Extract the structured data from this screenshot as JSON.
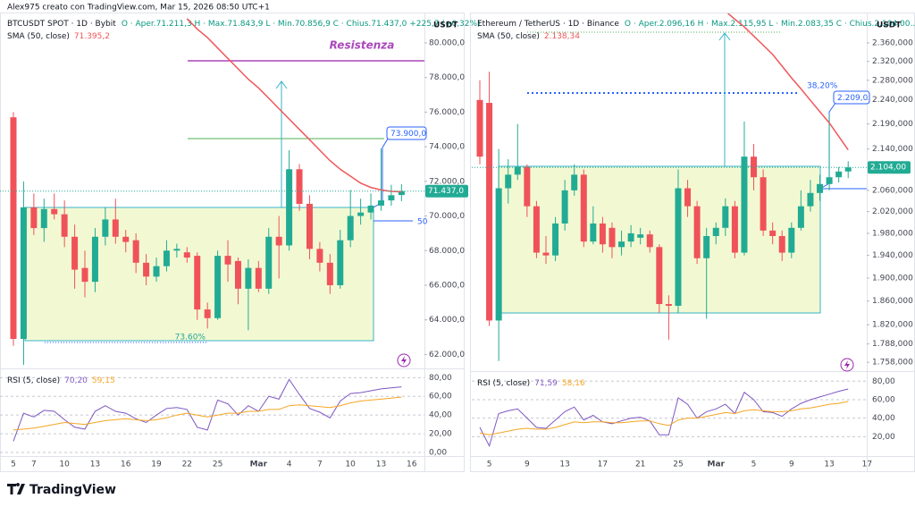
{
  "watermark": "Alex975 creato con TradingView.com, Mar 15, 2026 08:50 UTC+1",
  "logo": "TradingView",
  "chart_data": [
    {
      "type": "candlestick",
      "title": "BTCUSDT SPOT · 1D · Bybit",
      "ohlc_text": "O · Aper.71.211,3  H · Max.71.843,9  L · Min.70.856,9  C · Chius.71.437,0  +225,7 (+0,32%)",
      "currency": "USDT",
      "categories": [
        "5",
        null,
        "7",
        null,
        null,
        "10",
        null,
        null,
        "13",
        null,
        null,
        "16",
        null,
        null,
        "19",
        null,
        null,
        "22",
        null,
        null,
        "25",
        null,
        null,
        null,
        "Mar",
        null,
        null,
        "4",
        null,
        null,
        "7",
        null,
        null,
        "10",
        null,
        null,
        "13",
        null,
        null,
        "16"
      ],
      "open": [
        75700,
        62900,
        70500,
        69300,
        70400,
        70100,
        68800,
        67000,
        66200,
        68800,
        69800,
        68800,
        68600,
        67300,
        66500,
        67100,
        68000,
        67900,
        67700,
        64600,
        64100,
        67700,
        67400,
        65800,
        67000,
        65800,
        68800,
        68300,
        72700,
        70700,
        68100,
        67300,
        66000,
        68600,
        70000,
        70200,
        70600,
        70900,
        71211.3,
        null
      ],
      "high": [
        76000,
        72000,
        71300,
        71000,
        71300,
        70900,
        69500,
        68000,
        69300,
        70500,
        71000,
        69200,
        69000,
        67800,
        67600,
        68600,
        68400,
        68200,
        67900,
        65000,
        68000,
        68600,
        67600,
        67500,
        67400,
        69300,
        70000,
        73800,
        73000,
        71200,
        68500,
        67800,
        69200,
        71500,
        71000,
        71300,
        73900,
        71800,
        71843.9,
        null
      ],
      "low": [
        62500,
        61400,
        68900,
        68500,
        69800,
        68200,
        65800,
        65300,
        65600,
        68300,
        68400,
        67900,
        66700,
        66000,
        66200,
        66800,
        67600,
        67300,
        64000,
        63500,
        64000,
        66200,
        64900,
        63400,
        65600,
        65500,
        66400,
        68000,
        70300,
        67500,
        66800,
        65500,
        65800,
        68200,
        69500,
        69800,
        70300,
        70600,
        70856.9,
        null
      ],
      "close": [
        62900,
        70500,
        69300,
        70400,
        70100,
        68800,
        66900,
        66200,
        68800,
        69800,
        68800,
        68500,
        67300,
        66500,
        67100,
        68000,
        68100,
        67600,
        64600,
        64100,
        67700,
        67200,
        65800,
        67000,
        65800,
        68800,
        68300,
        72700,
        70700,
        68100,
        67300,
        66000,
        68600,
        70000,
        70200,
        70600,
        70900,
        71200,
        71437,
        null
      ],
      "up_color": "#22ab94",
      "down_color": "#f0525a",
      "sma": {
        "title": "SMA (50, close)",
        "value_label": "71.395,2",
        "color": "#f0575b",
        "values": [
          null,
          null,
          null,
          null,
          null,
          null,
          null,
          null,
          null,
          null,
          null,
          null,
          null,
          null,
          null,
          null,
          null,
          81400,
          80800,
          80300,
          79700,
          79100,
          78500,
          77900,
          77400,
          76800,
          76200,
          75600,
          75000,
          74400,
          73800,
          73200,
          72700,
          72300,
          71900,
          71650,
          71500,
          71420,
          71395.2,
          null
        ]
      },
      "log": false,
      "ylim": [
        61300,
        81700
      ],
      "yticks": [
        {
          "value": 80000,
          "label": "80.000,0"
        },
        {
          "value": 78000,
          "label": "78.000,0"
        },
        {
          "value": 76000,
          "label": "76.000,0"
        },
        {
          "value": 74000,
          "label": "74.000,0"
        },
        {
          "value": 72000,
          "label": "72.000,0"
        },
        {
          "value": 70000,
          "label": "70.000,0"
        },
        {
          "value": 68000,
          "label": "68.000,0"
        },
        {
          "value": 66000,
          "label": "66.000,0"
        },
        {
          "value": 64000,
          "label": "64.000,0"
        },
        {
          "value": 62000,
          "label": "62.000,0"
        }
      ],
      "last_price_label": "71.437,0",
      "annotations": {
        "resistance": "Resistenza",
        "target": "73.900,0",
        "fib": "73.60%",
        "level": "50"
      },
      "rsi": {
        "title": "RSI (5, close)",
        "ylim": [
          0,
          87
        ],
        "grid": true,
        "yticks": [
          {
            "value": 80,
            "label": "80,00"
          },
          {
            "value": 60,
            "label": "60,00"
          },
          {
            "value": 40,
            "label": "40,00"
          },
          {
            "value": 20,
            "label": "20,00"
          },
          {
            "value": 0,
            "label": "0,00"
          }
        ],
        "series": [
          {
            "color": "#7e57c2",
            "value_label": "70,20",
            "values": [
              12,
              42,
              38,
              45,
              44,
              35,
              27,
              25,
              44,
              50,
              44,
              42,
              36,
              32,
              40,
              47,
              48,
              46,
              27,
              24,
              56,
              52,
              40,
              50,
              44,
              60,
              57,
              78,
              62,
              47,
              43,
              37,
              55,
              63,
              64,
              66,
              68,
              69,
              70.2,
              null
            ]
          },
          {
            "color": "#f5a623",
            "value_label": "59,15",
            "values": [
              24,
              25,
              26,
              28,
              30,
              32,
              31,
              30,
              32,
              34,
              35,
              36,
              35,
              34,
              35,
              37,
              40,
              42,
              40,
              38,
              40,
              42,
              42,
              44,
              44,
              46,
              46,
              50,
              51,
              50,
              49,
              48,
              50,
              53,
              55,
              56,
              57,
              58,
              59.15,
              null
            ]
          }
        ]
      }
    },
    {
      "type": "candlestick",
      "title": "Ethereum / TetherUS · 1D · Binance",
      "ohlc_text": "O · Aper.2.096,16  H · Max.2.115,95  L · Min.2.083,35  C · Chius.2.104,00...",
      "currency": "USDT",
      "categories": [
        null,
        "5",
        null,
        null,
        null,
        "9",
        null,
        null,
        null,
        "13",
        null,
        null,
        null,
        "17",
        null,
        null,
        null,
        "21",
        null,
        null,
        null,
        "25",
        null,
        null,
        null,
        "Mar",
        null,
        null,
        null,
        "5",
        null,
        null,
        null,
        "9",
        null,
        null,
        null,
        "13",
        null,
        null,
        null,
        "17"
      ],
      "open": [
        2239,
        2233,
        1827,
        2064,
        2090,
        2105,
        2030,
        1945,
        1940,
        1998,
        2060,
        2090,
        1965,
        1998,
        1990,
        1955,
        1965,
        1972,
        1978,
        1955,
        1855,
        1852,
        2064,
        2030,
        1935,
        1975,
        1990,
        2030,
        1945,
        2125,
        2085,
        1985,
        1975,
        1945,
        1990,
        2030,
        2055,
        2072,
        2085,
        2096.16,
        null,
        null
      ],
      "high": [
        2280,
        2298,
        2140,
        2120,
        2190,
        2110,
        2040,
        1975,
        2010,
        2080,
        2110,
        2100,
        2030,
        2010,
        2000,
        1985,
        1995,
        1990,
        1985,
        1960,
        1870,
        2100,
        2080,
        2040,
        1990,
        2000,
        2045,
        2040,
        2195,
        2150,
        2100,
        2000,
        1985,
        2000,
        2060,
        2080,
        2090,
        2210,
        2105,
        2115.95,
        null,
        null
      ],
      "low": [
        2110,
        1818,
        1760,
        2035,
        2080,
        2010,
        1935,
        1925,
        1930,
        1985,
        2050,
        1955,
        1960,
        1945,
        1935,
        1940,
        1955,
        1960,
        1945,
        1840,
        1795,
        1840,
        2010,
        1925,
        1830,
        1960,
        1975,
        1935,
        1940,
        2060,
        1975,
        1960,
        1930,
        1935,
        1985,
        2020,
        2040,
        2060,
        2075,
        2083.35,
        null,
        null
      ],
      "close": [
        2125,
        1827,
        2064,
        2090,
        2105,
        2030,
        1945,
        1940,
        1998,
        2060,
        2090,
        1965,
        1998,
        1960,
        1955,
        1965,
        1980,
        1978,
        1955,
        1855,
        1852,
        2064,
        2030,
        1935,
        1975,
        1990,
        2030,
        1945,
        2125,
        2085,
        1985,
        1975,
        1945,
        1990,
        2030,
        2055,
        2072,
        2085,
        2096,
        2104,
        null,
        null
      ],
      "up_color": "#22ab94",
      "down_color": "#f0525a",
      "sma": {
        "title": "SMA (50, close)",
        "value_label": "2.138,34",
        "color": "#f0575b",
        "values": [
          null,
          null,
          null,
          null,
          null,
          null,
          null,
          null,
          null,
          null,
          null,
          null,
          null,
          null,
          null,
          null,
          null,
          null,
          null,
          null,
          null,
          null,
          null,
          null,
          null,
          null,
          2430,
          2412,
          2395,
          2375,
          2355,
          2335,
          2310,
          2285,
          2262,
          2238,
          2215,
          2192,
          2165,
          2138.34,
          null,
          null
        ]
      },
      "log": true,
      "ylim": [
        1751,
        2425
      ],
      "yticks": [
        {
          "value": 2360,
          "label": "2.360,000"
        },
        {
          "value": 2320,
          "label": "2.320,000"
        },
        {
          "value": 2280,
          "label": "2.280,000"
        },
        {
          "value": 2240,
          "label": "2.240,000"
        },
        {
          "value": 2190,
          "label": "2.190,000"
        },
        {
          "value": 2140,
          "label": "2.140,000"
        },
        {
          "value": 2060,
          "label": "2.060,000"
        },
        {
          "value": 2020,
          "label": "2.020,000"
        },
        {
          "value": 1980,
          "label": "1.980,000"
        },
        {
          "value": 1940,
          "label": "1.940,000"
        },
        {
          "value": 1900,
          "label": "1.900,000"
        },
        {
          "value": 1860,
          "label": "1.860,000"
        },
        {
          "value": 1820,
          "label": "1.820,000"
        },
        {
          "value": 1788,
          "label": "1.788,000"
        },
        {
          "value": 1758,
          "label": "1.758,000"
        }
      ],
      "last_price_label": "2.104,00",
      "annotations": {
        "fib": "38,20%",
        "target": "2.209,0"
      },
      "rsi": {
        "title": "RSI (5, close)",
        "ylim": [
          0,
          88
        ],
        "grid": true,
        "yticks": [
          {
            "value": 80,
            "label": "80,00"
          },
          {
            "value": 60,
            "label": "60,00"
          },
          {
            "value": 40,
            "label": "40,00"
          },
          {
            "value": 20,
            "label": "20,00"
          }
        ],
        "series": [
          {
            "color": "#7e57c2",
            "value_label": "71,59",
            "values": [
              30,
              10,
              45,
              48,
              50,
              40,
              30,
              29,
              38,
              47,
              52,
              38,
              43,
              36,
              34,
              37,
              40,
              41,
              37,
              22,
              22,
              62,
              55,
              40,
              47,
              50,
              55,
              45,
              68,
              60,
              47,
              46,
              42,
              50,
              56,
              60,
              63,
              66,
              69,
              71.59,
              null,
              null
            ]
          },
          {
            "color": "#f5a623",
            "value_label": "58,16",
            "values": [
              24,
              22,
              24,
              26,
              28,
              29,
              28,
              28,
              30,
              33,
              36,
              35,
              36,
              36,
              35,
              35,
              36,
              37,
              37,
              34,
              32,
              38,
              40,
              40,
              42,
              44,
              46,
              45,
              48,
              49,
              48,
              47,
              47,
              48,
              50,
              51,
              53,
              55,
              56,
              58.16,
              null,
              null
            ]
          }
        ]
      }
    }
  ]
}
